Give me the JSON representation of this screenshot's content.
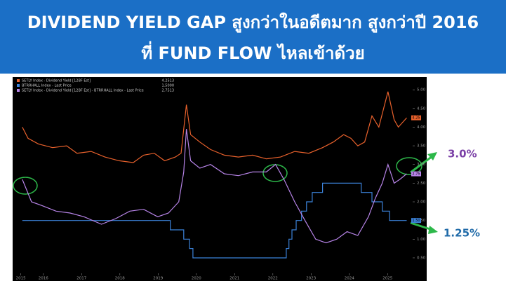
{
  "header": {
    "title_line1": "DIVIDEND YIELD GAP สูงกว่าในอดีตมาก สูงกว่าปี 2016",
    "title_line2": "ที่ FUND FLOW ไหลเข้าด้วย"
  },
  "chart_data": {
    "type": "line",
    "series": [
      {
        "name": "SETLY Index - Dividend Yield [12BF Est]",
        "legend_value": "4.2513",
        "end_label": "4.25",
        "color": "#e8612c",
        "x": [
          2015.45,
          2015.6,
          2015.87,
          2016.24,
          2016.61,
          2016.88,
          2017.25,
          2017.61,
          2017.98,
          2018.35,
          2018.62,
          2018.9,
          2019.17,
          2019.45,
          2019.6,
          2019.74,
          2019.85,
          2020.09,
          2020.37,
          2020.73,
          2021.1,
          2021.47,
          2021.83,
          2022.2,
          2022.57,
          2022.94,
          2023.3,
          2023.58,
          2023.85,
          2024.04,
          2024.22,
          2024.4,
          2024.59,
          2024.77,
          2025.01,
          2025.17,
          2025.28,
          2025.5
        ],
        "values": [
          4.0,
          3.7,
          3.55,
          3.45,
          3.5,
          3.3,
          3.35,
          3.2,
          3.1,
          3.05,
          3.25,
          3.3,
          3.1,
          3.2,
          3.3,
          4.6,
          3.8,
          3.6,
          3.4,
          3.25,
          3.2,
          3.25,
          3.15,
          3.2,
          3.35,
          3.3,
          3.45,
          3.6,
          3.8,
          3.7,
          3.5,
          3.6,
          4.3,
          4.0,
          4.95,
          4.2,
          4.0,
          4.25
        ]
      },
      {
        "name": "BTRRHALL Index - Last Price",
        "legend_value": "1.5000",
        "end_label": "1.50",
        "color": "#3b82d9",
        "x": [
          2015.45,
          2019.32,
          2019.32,
          2019.67,
          2019.67,
          2019.82,
          2019.82,
          2019.91,
          2019.91,
          2022.35,
          2022.35,
          2022.42,
          2022.42,
          2022.5,
          2022.5,
          2022.61,
          2022.61,
          2022.75,
          2022.75,
          2022.88,
          2022.88,
          2023.03,
          2023.03,
          2023.3,
          2023.3,
          2024.31,
          2024.31,
          2024.59,
          2024.59,
          2024.86,
          2024.86,
          2025.05,
          2025.05,
          2025.5
        ],
        "values": [
          1.5,
          1.5,
          1.25,
          1.25,
          1.0,
          1.0,
          0.75,
          0.75,
          0.5,
          0.5,
          0.75,
          0.75,
          1.0,
          1.0,
          1.25,
          1.25,
          1.5,
          1.5,
          1.75,
          1.75,
          2.0,
          2.0,
          2.25,
          2.25,
          2.5,
          2.5,
          2.25,
          2.25,
          2.0,
          2.0,
          1.75,
          1.75,
          1.5,
          1.5
        ]
      },
      {
        "name": "SETLY Index - Dividend Yield [12BF Est] - BTRRHALL Index - Last Price",
        "legend_value": "2.7513",
        "end_label": "2.75",
        "color": "#b784e8",
        "x": [
          2015.45,
          2015.69,
          2015.96,
          2016.33,
          2016.7,
          2017.06,
          2017.52,
          2017.89,
          2018.26,
          2018.62,
          2018.99,
          2019.27,
          2019.54,
          2019.67,
          2019.74,
          2019.85,
          2020.09,
          2020.37,
          2020.73,
          2021.1,
          2021.47,
          2021.83,
          2022.07,
          2022.29,
          2022.57,
          2022.84,
          2023.12,
          2023.39,
          2023.67,
          2023.94,
          2024.22,
          2024.5,
          2024.68,
          2024.86,
          2025.01,
          2025.17,
          2025.32,
          2025.5
        ],
        "values": [
          2.6,
          2.0,
          1.9,
          1.75,
          1.7,
          1.6,
          1.4,
          1.55,
          1.75,
          1.8,
          1.6,
          1.7,
          2.0,
          2.8,
          3.95,
          3.1,
          2.9,
          3.0,
          2.75,
          2.7,
          2.8,
          2.8,
          3.0,
          2.6,
          2.0,
          1.5,
          1.0,
          0.9,
          1.0,
          1.2,
          1.1,
          1.6,
          2.1,
          2.5,
          3.0,
          2.5,
          2.6,
          2.75
        ]
      }
    ],
    "xlim": [
      2015.27,
      2025.6
    ],
    "xticks": [
      {
        "value": 2015.41,
        "label": "2015"
      },
      2016,
      2017,
      2018,
      2019,
      2020,
      2021,
      2022,
      2023,
      2024,
      2025
    ],
    "ylim": [
      -0.12,
      5.34
    ],
    "yticks": [
      {
        "value": 0.5,
        "label": "0.50"
      },
      {
        "value": 1.0,
        "label": "1.00"
      },
      {
        "value": 1.5,
        "label": "1.50"
      },
      {
        "value": 2.0,
        "label": "2.00"
      },
      {
        "value": 2.5,
        "label": "2.50"
      },
      {
        "value": 3.0,
        "label": "3.00"
      },
      {
        "value": 3.5,
        "label": "3.50"
      },
      {
        "value": 4.0,
        "label": "4.00"
      },
      {
        "value": 4.5,
        "label": "4.50"
      },
      {
        "value": 5.0,
        "label": "5.00"
      }
    ],
    "grid": false,
    "annotations": [
      {
        "text": "3.0%",
        "color": "#7a3fa6"
      },
      {
        "text": "1.25%",
        "color": "#1f6aa8"
      }
    ]
  }
}
